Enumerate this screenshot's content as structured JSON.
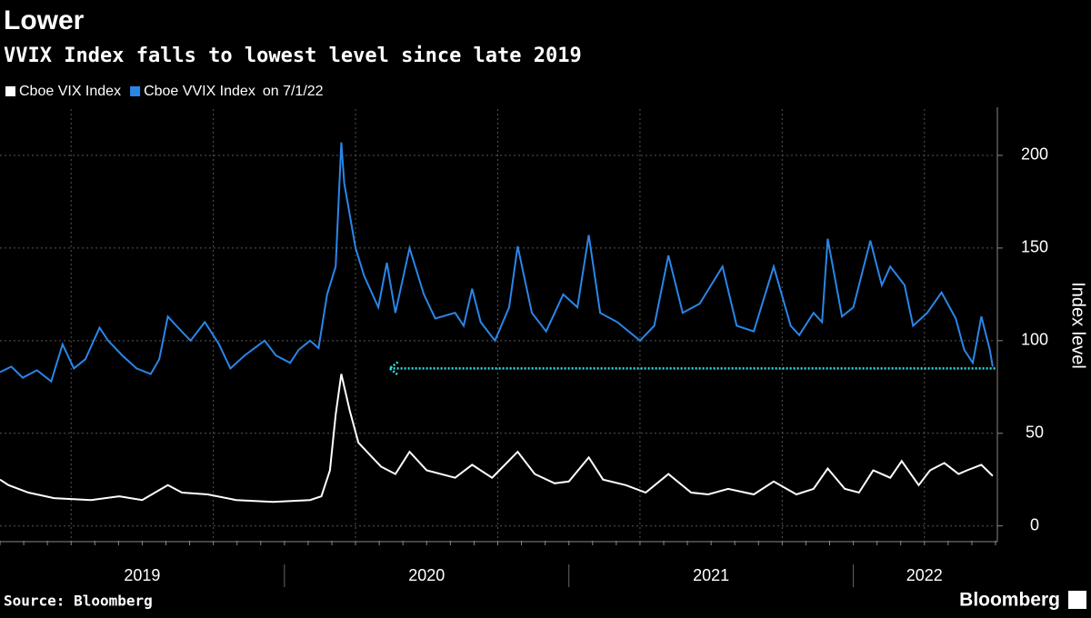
{
  "chart_data": {
    "type": "line",
    "title": "Lower",
    "subtitle": "VVIX Index falls to lowest level since late 2019",
    "legend_note": "on 7/1/22",
    "y_axis_label": "Index level",
    "source": "Source: Bloomberg",
    "brand": "Bloomberg",
    "xlim": [
      2019,
      2022.5
    ],
    "xticks": [
      {
        "value": 2019.5,
        "label": "2019"
      },
      {
        "value": 2020.5,
        "label": "2020"
      },
      {
        "value": 2021.5,
        "label": "2021"
      },
      {
        "value": 2022.25,
        "label": "2022"
      }
    ],
    "x_grid": [
      2019.25,
      2019.75,
      2020.25,
      2020.75,
      2021.25,
      2021.75,
      2022.25
    ],
    "ylim": [
      -8,
      225
    ],
    "yticks": [
      0,
      50,
      100,
      150,
      200
    ],
    "grid": true,
    "reference_arrow": {
      "value": 85,
      "x": [
        2020.37,
        2022.5
      ],
      "color": "#2fe0e0"
    },
    "series": [
      {
        "name": "Cboe VIX Index",
        "color": "#ffffff",
        "x": [
          2019.0,
          2019.03,
          2019.1,
          2019.19,
          2019.32,
          2019.42,
          2019.5,
          2019.59,
          2019.64,
          2019.73,
          2019.83,
          2019.96,
          2020.09,
          2020.13,
          2020.16,
          2020.18,
          2020.2,
          2020.23,
          2020.26,
          2020.29,
          2020.34,
          2020.39,
          2020.44,
          2020.5,
          2020.6,
          2020.66,
          2020.73,
          2020.82,
          2020.88,
          2020.95,
          2021.0,
          2021.07,
          2021.12,
          2021.2,
          2021.27,
          2021.35,
          2021.43,
          2021.49,
          2021.56,
          2021.65,
          2021.72,
          2021.8,
          2021.86,
          2021.91,
          2021.97,
          2022.02,
          2022.07,
          2022.13,
          2022.17,
          2022.23,
          2022.27,
          2022.32,
          2022.37,
          2022.4,
          2022.45,
          2022.49
        ],
        "values": [
          25,
          22,
          18,
          15,
          14,
          16,
          14,
          22,
          18,
          17,
          14,
          13,
          14,
          16,
          30,
          60,
          82,
          62,
          45,
          40,
          32,
          28,
          40,
          30,
          26,
          33,
          26,
          40,
          28,
          23,
          24,
          37,
          25,
          22,
          18,
          28,
          18,
          17,
          20,
          17,
          24,
          17,
          20,
          31,
          20,
          18,
          30,
          26,
          35,
          22,
          30,
          34,
          28,
          30,
          33,
          27
        ]
      },
      {
        "name": "Cboe VVIX Index",
        "color": "#2a86e8",
        "x": [
          2019.0,
          2019.04,
          2019.08,
          2019.13,
          2019.18,
          2019.22,
          2019.26,
          2019.3,
          2019.35,
          2019.38,
          2019.43,
          2019.48,
          2019.53,
          2019.56,
          2019.59,
          2019.62,
          2019.67,
          2019.72,
          2019.77,
          2019.81,
          2019.86,
          2019.93,
          2019.97,
          2020.02,
          2020.05,
          2020.09,
          2020.12,
          2020.15,
          2020.18,
          2020.2,
          2020.21,
          2020.25,
          2020.28,
          2020.33,
          2020.36,
          2020.39,
          2020.44,
          2020.49,
          2020.53,
          2020.6,
          2020.63,
          2020.66,
          2020.69,
          2020.74,
          2020.79,
          2020.82,
          2020.87,
          2020.92,
          2020.98,
          2021.03,
          2021.07,
          2021.11,
          2021.17,
          2021.25,
          2021.3,
          2021.35,
          2021.4,
          2021.46,
          2021.54,
          2021.59,
          2021.65,
          2021.72,
          2021.78,
          2021.81,
          2021.86,
          2021.89,
          2021.91,
          2021.96,
          2022.0,
          2022.06,
          2022.1,
          2022.13,
          2022.18,
          2022.21,
          2022.26,
          2022.31,
          2022.36,
          2022.39,
          2022.42,
          2022.45,
          2022.48,
          2022.49
        ],
        "values": [
          83,
          86,
          80,
          84,
          78,
          98,
          85,
          90,
          107,
          100,
          92,
          85,
          82,
          90,
          113,
          108,
          100,
          110,
          98,
          85,
          92,
          100,
          92,
          88,
          95,
          100,
          96,
          125,
          140,
          207,
          185,
          150,
          135,
          118,
          142,
          115,
          150,
          125,
          112,
          115,
          108,
          128,
          110,
          100,
          118,
          151,
          115,
          105,
          125,
          118,
          157,
          115,
          110,
          100,
          108,
          146,
          115,
          120,
          140,
          108,
          105,
          140,
          108,
          103,
          115,
          110,
          155,
          113,
          118,
          154,
          130,
          140,
          130,
          108,
          115,
          126,
          112,
          95,
          88,
          113,
          95,
          86
        ]
      }
    ]
  }
}
